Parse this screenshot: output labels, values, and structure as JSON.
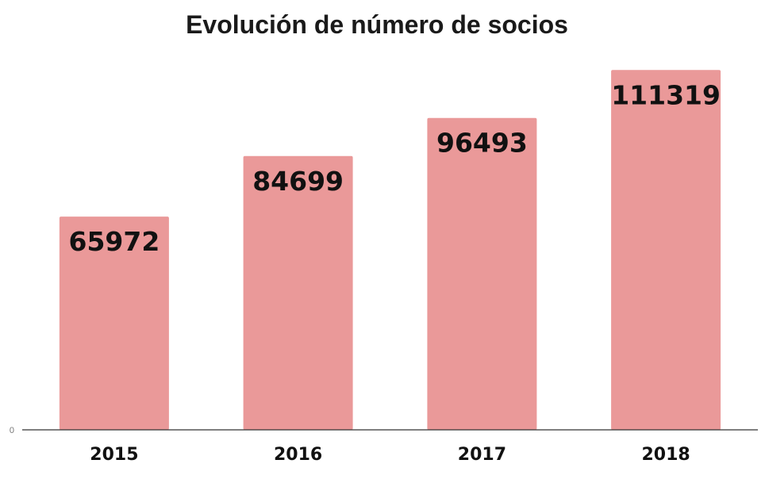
{
  "chart_data": {
    "type": "bar",
    "title": "Evolución de número de socios",
    "categories": [
      "2015",
      "2016",
      "2017",
      "2018"
    ],
    "values": [
      65972,
      84699,
      96493,
      111319
    ],
    "data_labels": [
      "65972",
      "84699",
      "96493",
      "111319"
    ],
    "y_ticks": [
      "0"
    ],
    "ylim": [
      0,
      113600
    ],
    "xlabel": "",
    "ylabel": "",
    "grid": false,
    "legend": "none",
    "bar_color": "#ea9999",
    "axis_color": "#333333"
  }
}
